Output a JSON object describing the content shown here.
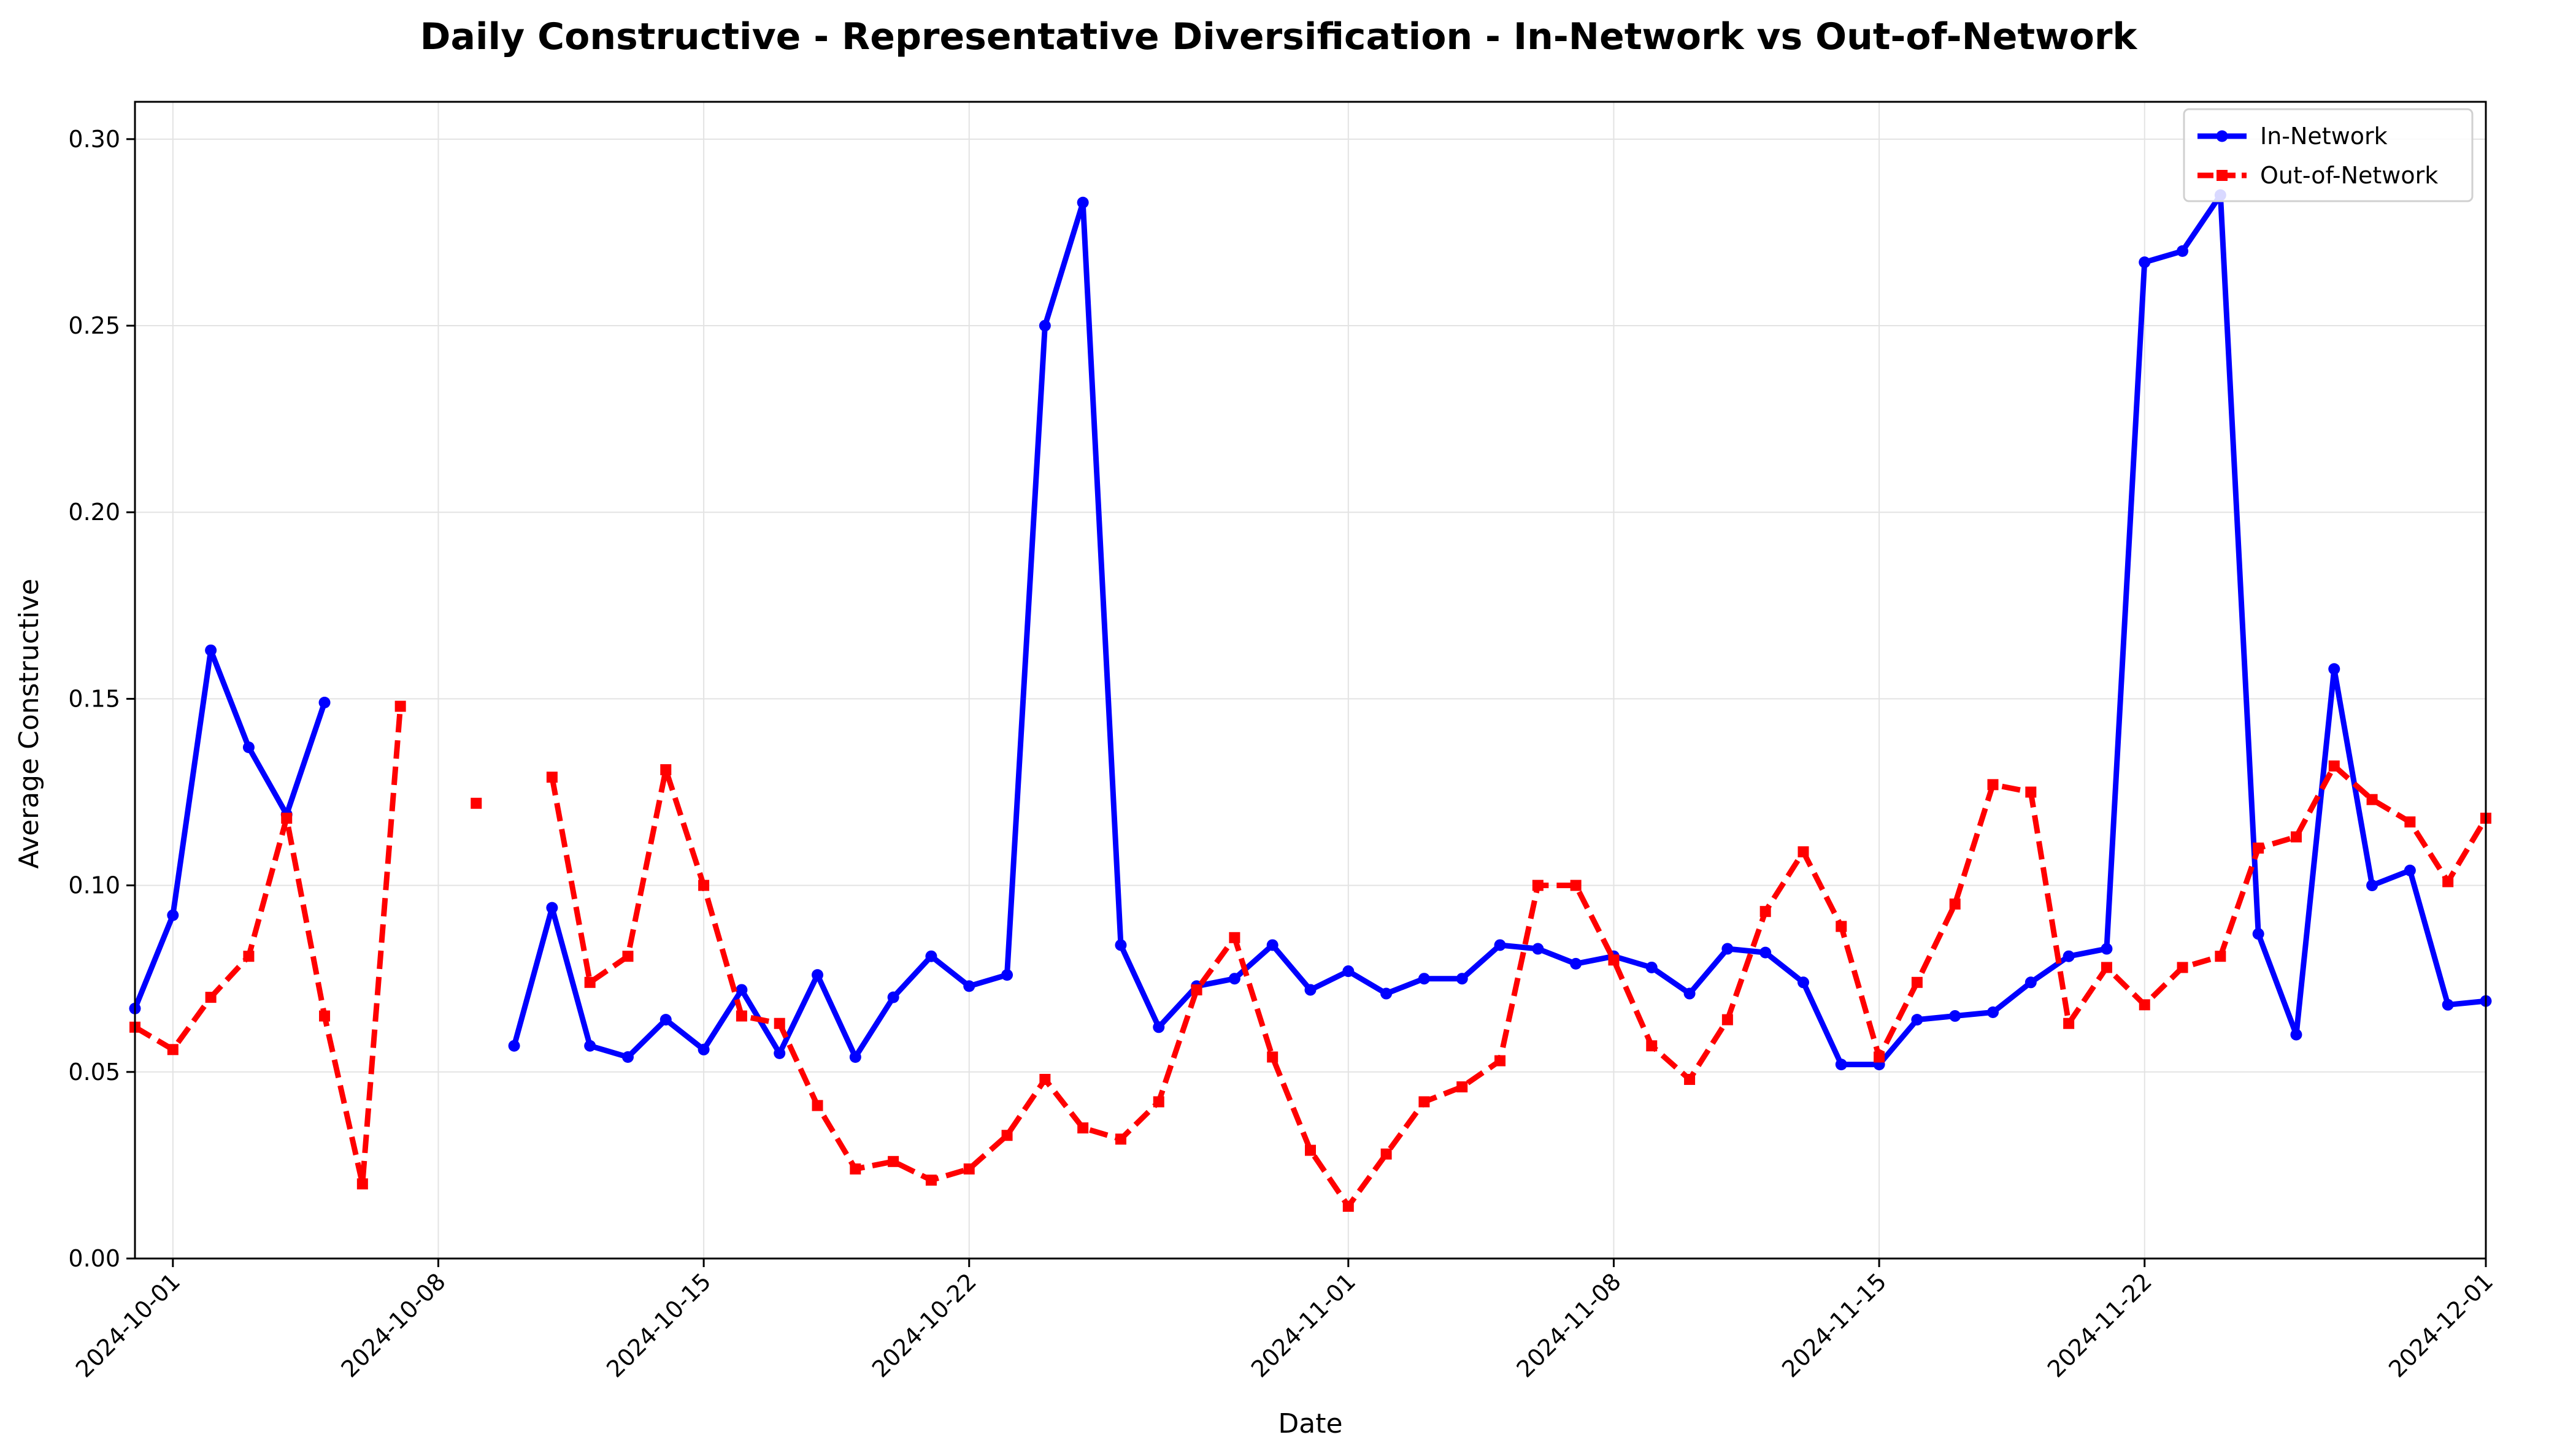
{
  "chart_data": {
    "type": "line",
    "title": "Daily Constructive - Representative Diversification - In-Network vs Out-of-Network",
    "xlabel": "Date",
    "ylabel": "Average Constructive",
    "x_start": "2024-09-30",
    "x_end": "2024-12-01",
    "xlim": [
      "2024-09-30",
      "2024-12-01"
    ],
    "ylim": [
      0,
      0.31
    ],
    "x_ticks": [
      "2024-10-01",
      "2024-10-08",
      "2024-10-15",
      "2024-10-22",
      "2024-11-01",
      "2024-11-08",
      "2024-11-15",
      "2024-11-22",
      "2024-12-01"
    ],
    "y_ticks": [
      "0.00",
      "0.05",
      "0.10",
      "0.15",
      "0.20",
      "0.25",
      "0.30"
    ],
    "grid": true,
    "legend_position": "top-right",
    "series": [
      {
        "name": "In-Network",
        "color": "#0000ff",
        "style": "solid",
        "marker": "circle",
        "values": [
          0.067,
          0.092,
          0.163,
          0.137,
          0.119,
          0.149,
          null,
          null,
          null,
          null,
          0.057,
          0.094,
          0.057,
          0.054,
          0.064,
          0.056,
          0.072,
          0.055,
          0.076,
          0.054,
          0.07,
          0.081,
          0.073,
          0.076,
          0.25,
          0.283,
          0.084,
          0.062,
          0.073,
          0.075,
          0.084,
          0.072,
          0.077,
          0.071,
          0.075,
          0.075,
          0.084,
          0.083,
          0.079,
          0.081,
          0.078,
          0.071,
          0.083,
          0.082,
          0.074,
          0.052,
          0.052,
          0.064,
          0.065,
          0.066,
          0.074,
          0.081,
          0.083,
          0.267,
          0.27,
          0.285,
          0.087,
          0.06,
          0.158,
          0.1,
          0.104,
          0.068,
          0.069
        ]
      },
      {
        "name": "Out-of-Network",
        "color": "#ff0000",
        "style": "dashed",
        "marker": "square",
        "values": [
          0.062,
          0.056,
          0.07,
          0.081,
          0.118,
          0.065,
          0.02,
          0.148,
          null,
          0.122,
          null,
          0.129,
          0.074,
          0.081,
          0.131,
          0.1,
          0.065,
          0.063,
          0.041,
          0.024,
          0.026,
          0.021,
          0.024,
          0.033,
          0.048,
          0.035,
          0.032,
          0.042,
          0.072,
          0.086,
          0.054,
          0.029,
          0.014,
          0.028,
          0.042,
          0.046,
          0.053,
          0.1,
          0.1,
          0.08,
          0.057,
          0.048,
          0.064,
          0.093,
          0.109,
          0.089,
          0.054,
          0.074,
          0.095,
          0.127,
          0.125,
          0.063,
          0.078,
          0.068,
          0.078,
          0.081,
          0.11,
          0.113,
          0.132,
          0.123,
          0.117,
          0.101,
          0.118
        ]
      }
    ]
  }
}
